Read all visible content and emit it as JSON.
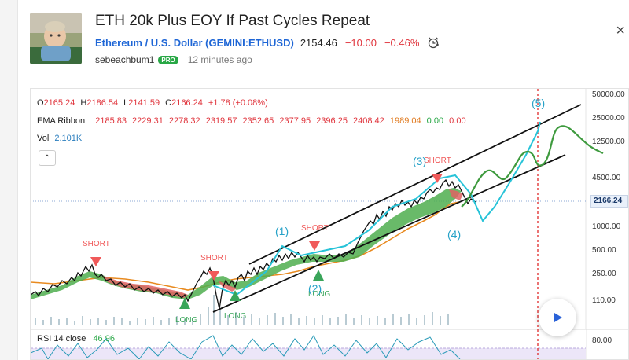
{
  "idea": {
    "title": "ETH 20k Plus EOY If Past Cycles Repeat",
    "symbol_link": "Ethereum / U.S. Dollar (GEMINI:ETHUSD)",
    "price": "2154.46",
    "change": "−10.00",
    "change_pct": "−0.46%",
    "author": "sebeachbum1",
    "badge": "PRO",
    "time_ago": "12 minutes ago",
    "close_glyph": "×"
  },
  "legend": {
    "ohlc": {
      "o_label": "O",
      "o": "2165.24",
      "h_label": "H",
      "h": "2186.54",
      "l_label": "L",
      "l": "2141.59",
      "c_label": "C",
      "c": "2166.24",
      "change": "+1.78 (+0.08%)"
    },
    "ema": {
      "label": "EMA Ribbon",
      "values": [
        "2185.83",
        "2229.31",
        "2278.32",
        "2319.57",
        "2352.65",
        "2377.95",
        "2396.25",
        "2408.42",
        "1989.04",
        "0.00",
        "0.00"
      ]
    },
    "vol": {
      "label": "Vol",
      "value": "2.101K"
    },
    "collapse_glyph": "⌃"
  },
  "rsi": {
    "label": "RSI 14 close",
    "value": "46.96"
  },
  "price_axis": {
    "ticks": [
      "50000.00",
      "25000.00",
      "12500.00",
      "4500.00",
      "1000.00",
      "500.00",
      "250.00",
      "110.00",
      "80.00"
    ],
    "current": "2166.24"
  },
  "annotations": {
    "short_labels": [
      "SHORT",
      "SHORT",
      "SHORT",
      "SHORT"
    ],
    "long_labels": [
      "LONG",
      "LONG",
      "LONG"
    ],
    "waves": [
      "(1)",
      "(2)",
      "(3)",
      "(4)",
      "(5)"
    ]
  },
  "colors": {
    "short": "#f05a5a",
    "long": "#3aa55a",
    "wave": "#27a2c8",
    "projection_cyan": "#27c3d8",
    "projection_green": "#3e9a3e",
    "ema_orange": "#e88a1f",
    "ribbon_green": "#3fa543",
    "ribbon_red": "#e06363",
    "cycle_line": "#e02828"
  }
}
